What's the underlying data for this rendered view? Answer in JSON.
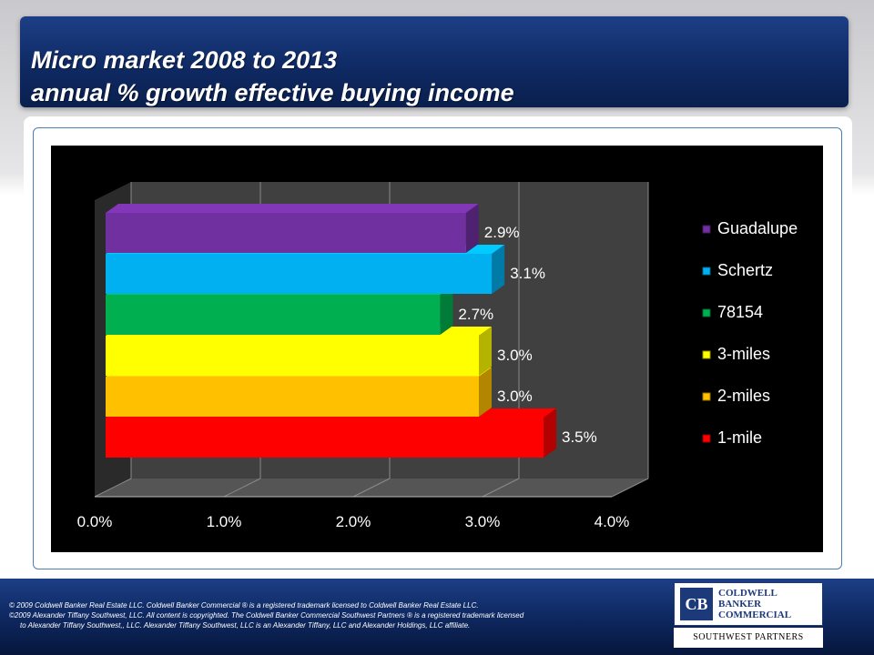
{
  "slide": {
    "title_line1": "Micro market  2008 to 2013",
    "title_line2": "annual % growth effective buying income"
  },
  "chart_data": {
    "type": "bar",
    "orientation": "horizontal",
    "three_d": true,
    "categories": [
      "1-mile",
      "2-miles",
      "3-miles",
      "78154",
      "Schertz",
      "Guadalupe"
    ],
    "values": [
      3.5,
      3.0,
      3.0,
      2.7,
      3.1,
      2.9
    ],
    "data_labels": [
      "3.5%",
      "3.0%",
      "3.0%",
      "2.7%",
      "3.1%",
      "2.9%"
    ],
    "colors": [
      "#ff0000",
      "#ffc000",
      "#ffff00",
      "#00b050",
      "#00b0f0",
      "#7030a0"
    ],
    "xlim": [
      0,
      4
    ],
    "x_ticks": [
      "0.0%",
      "1.0%",
      "2.0%",
      "3.0%",
      "4.0%"
    ],
    "legend": {
      "position": "right",
      "entries": [
        "Guadalupe",
        "Schertz",
        "78154",
        "3-miles",
        "2-miles",
        "1-mile"
      ]
    },
    "background": "#000000",
    "grid": true
  },
  "footer": {
    "line1": "©  2009 Coldwell Banker Real Estate LLC. Coldwell Banker Commercial ® is a registered trademark licensed to Coldwell Banker Real Estate LLC.",
    "line2": "©2009 Alexander Tiffany Southwest, LLC. All content is copyrighted. The Coldwell Banker Commercial Southwest Partners ® is a registered trademark licensed",
    "line3": "to Alexander Tiffany Southwest,, LLC.  Alexander Tiffany Southwest, LLC is an Alexander Tiffany, LLC and Alexander Holdings, LLC affiliate."
  },
  "logo": {
    "word1": "COLDWELL",
    "word2": "BANKER",
    "word3": "COMMERCIAL",
    "subtitle": "SOUTHWEST PARTNERS",
    "icon": "cb-logo-icon"
  }
}
